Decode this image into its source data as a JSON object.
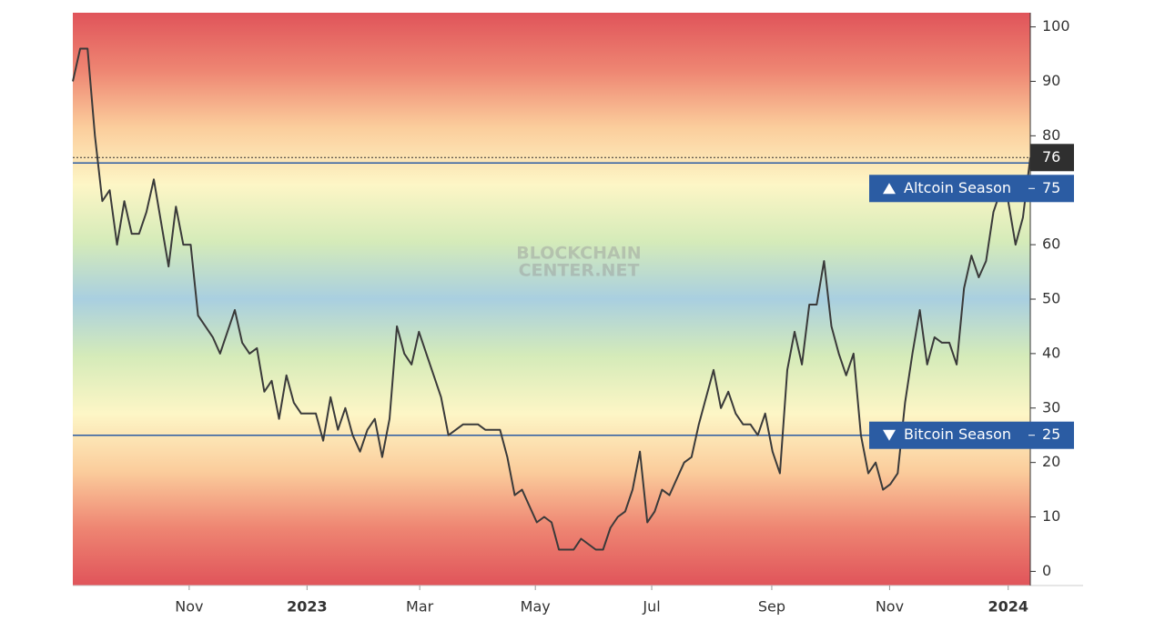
{
  "chart_data": {
    "type": "line",
    "watermark": [
      "BLOCKCHAIN",
      "CENTER.NET"
    ],
    "color": "#3a3a3a",
    "values": [
      90,
      96,
      96,
      80,
      68,
      70,
      60,
      68,
      62,
      62,
      66,
      72,
      64,
      56,
      67,
      60,
      60,
      47,
      45,
      43,
      40,
      44,
      48,
      42,
      40,
      41,
      33,
      35,
      28,
      36,
      31,
      29,
      29,
      29,
      24,
      32,
      26,
      30,
      25,
      22,
      26,
      28,
      21,
      28,
      45,
      40,
      38,
      44,
      40,
      36,
      32,
      25,
      26,
      27,
      27,
      27,
      26,
      26,
      26,
      21,
      14,
      15,
      12,
      9,
      10,
      9,
      4,
      4,
      4,
      6,
      5,
      4,
      4,
      8,
      10,
      11,
      15,
      22,
      9,
      11,
      15,
      14,
      17,
      20,
      21,
      27,
      32,
      37,
      30,
      33,
      29,
      27,
      27,
      25,
      29,
      22,
      18,
      37,
      44,
      38,
      49,
      49,
      57,
      45,
      40,
      36,
      40,
      25,
      18,
      20,
      15,
      16,
      18,
      31,
      40,
      48,
      38,
      43,
      42,
      42,
      38,
      52,
      58,
      54,
      57,
      66,
      70,
      68,
      60,
      65,
      76
    ],
    "xlim": [
      0,
      130
    ],
    "xticks": [
      {
        "value": 15.8,
        "label": "Nov"
      },
      {
        "value": 31.8,
        "label": "2023"
      },
      {
        "value": 47.1,
        "label": "Mar"
      },
      {
        "value": 62.8,
        "label": "May"
      },
      {
        "value": 78.6,
        "label": "Jul"
      },
      {
        "value": 94.9,
        "label": "Sep"
      },
      {
        "value": 110.9,
        "label": "Nov"
      },
      {
        "value": 127.0,
        "label": "2024"
      }
    ],
    "ylim": [
      -2.6,
      102.6
    ],
    "yticks": [
      0,
      10,
      20,
      30,
      40,
      50,
      60,
      70,
      80,
      90,
      100
    ],
    "reference_lines": [
      {
        "label": "Altcoin Season",
        "value": 75,
        "color": "#2b5ca3"
      },
      {
        "label": "Bitcoin Season",
        "value": 25,
        "color": "#2b5ca3"
      }
    ]
  }
}
